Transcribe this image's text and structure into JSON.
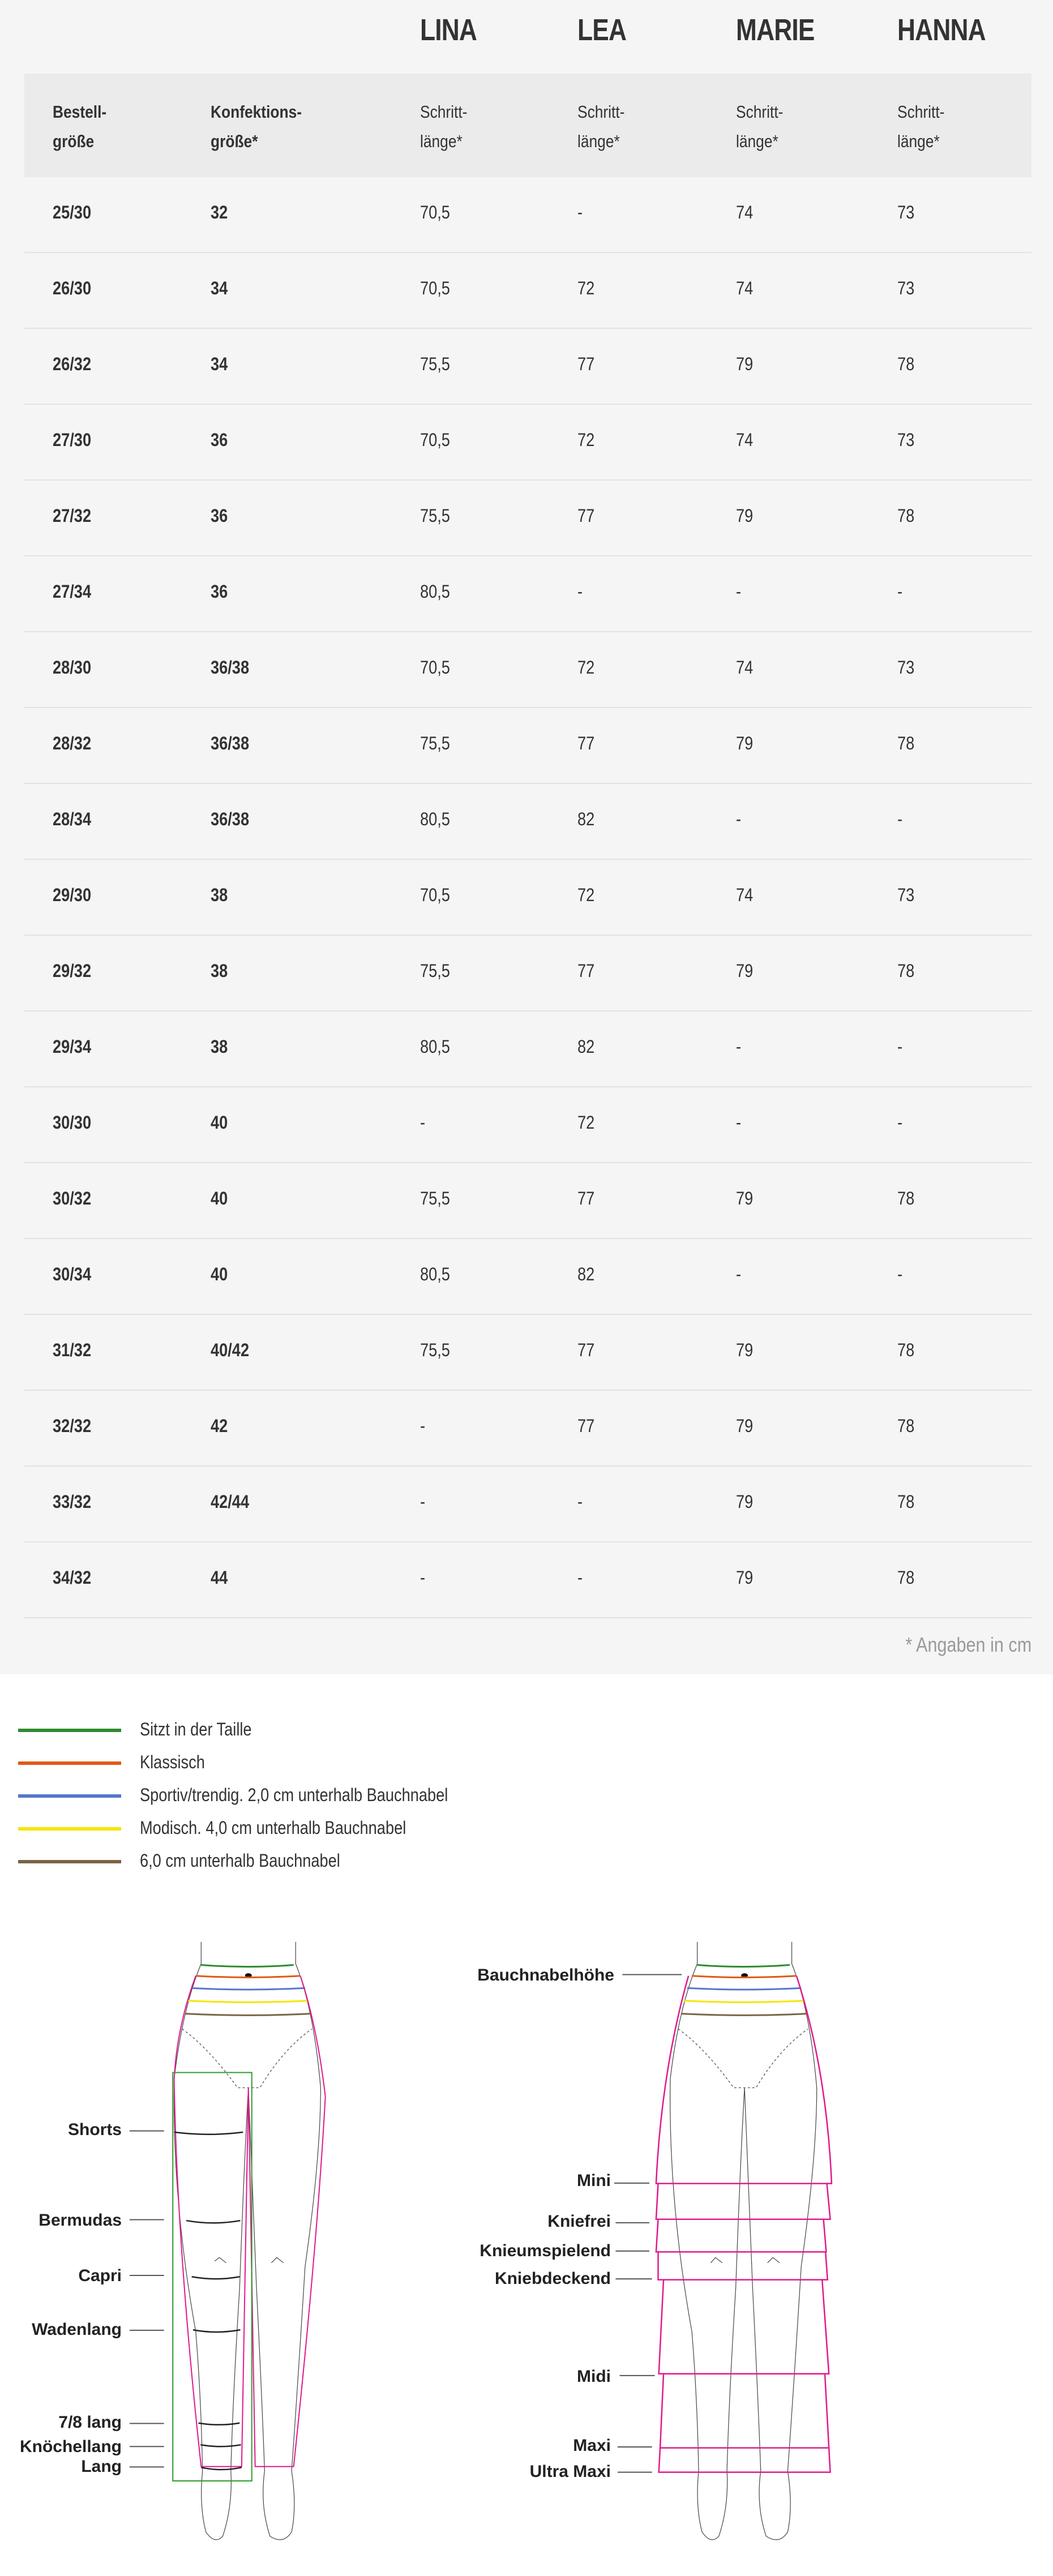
{
  "table": {
    "models": [
      "LINA",
      "LEA",
      "MARIE",
      "HANNA"
    ],
    "headers": {
      "bestell": [
        "Bestell-",
        "größe"
      ],
      "konfektion": [
        "Konfektions-",
        "größe*"
      ],
      "schritt": [
        "Schritt-",
        "länge*"
      ]
    },
    "rows": [
      [
        "25/30",
        "32",
        "70,5",
        "-",
        "74",
        "73"
      ],
      [
        "26/30",
        "34",
        "70,5",
        "72",
        "74",
        "73"
      ],
      [
        "26/32",
        "34",
        "75,5",
        "77",
        "79",
        "78"
      ],
      [
        "27/30",
        "36",
        "70,5",
        "72",
        "74",
        "73"
      ],
      [
        "27/32",
        "36",
        "75,5",
        "77",
        "79",
        "78"
      ],
      [
        "27/34",
        "36",
        "80,5",
        "-",
        "-",
        "-"
      ],
      [
        "28/30",
        "36/38",
        "70,5",
        "72",
        "74",
        "73"
      ],
      [
        "28/32",
        "36/38",
        "75,5",
        "77",
        "79",
        "78"
      ],
      [
        "28/34",
        "36/38",
        "80,5",
        "82",
        "-",
        "-"
      ],
      [
        "29/30",
        "38",
        "70,5",
        "72",
        "74",
        "73"
      ],
      [
        "29/32",
        "38",
        "75,5",
        "77",
        "79",
        "78"
      ],
      [
        "29/34",
        "38",
        "80,5",
        "82",
        "-",
        "-"
      ],
      [
        "30/30",
        "40",
        "-",
        "72",
        "-",
        "-"
      ],
      [
        "30/32",
        "40",
        "75,5",
        "77",
        "79",
        "78"
      ],
      [
        "30/34",
        "40",
        "80,5",
        "82",
        "-",
        "-"
      ],
      [
        "31/32",
        "40/42",
        "75,5",
        "77",
        "79",
        "78"
      ],
      [
        "32/32",
        "42",
        "-",
        "77",
        "79",
        "78"
      ],
      [
        "33/32",
        "42/44",
        "-",
        "-",
        "79",
        "78"
      ],
      [
        "34/32",
        "44",
        "-",
        "-",
        "79",
        "78"
      ]
    ],
    "footnote": "* Angaben in cm"
  },
  "legend": [
    {
      "label": "Sitzt in der Taille",
      "color": "#2e8b2e"
    },
    {
      "label": "Klassisch",
      "color": "#e05a14"
    },
    {
      "label": "Sportiv/trendig. 2,0 cm unterhalb Bauchnabel",
      "color": "#5577cc"
    },
    {
      "label": "Modisch. 4,0 cm unterhalb Bauchnabel",
      "color": "#f5e600"
    },
    {
      "label": "6,0 cm unterhalb Bauchnabel",
      "color": "#7a6444"
    }
  ],
  "pants_lengths": [
    "Shorts",
    "Bermudas",
    "Capri",
    "Wadenlang",
    "7/8 lang",
    "Knöchellang",
    "Lang"
  ],
  "skirt_labels": [
    "Bauchnabelhöhe",
    "Mini",
    "Kniefrei",
    "Knieumspielend",
    "Kniebdeckend",
    "Midi",
    "Maxi",
    "Ultra Maxi"
  ],
  "colors": {
    "outline_pink": "#e0198c",
    "rect_green": "#2e9b2e"
  }
}
